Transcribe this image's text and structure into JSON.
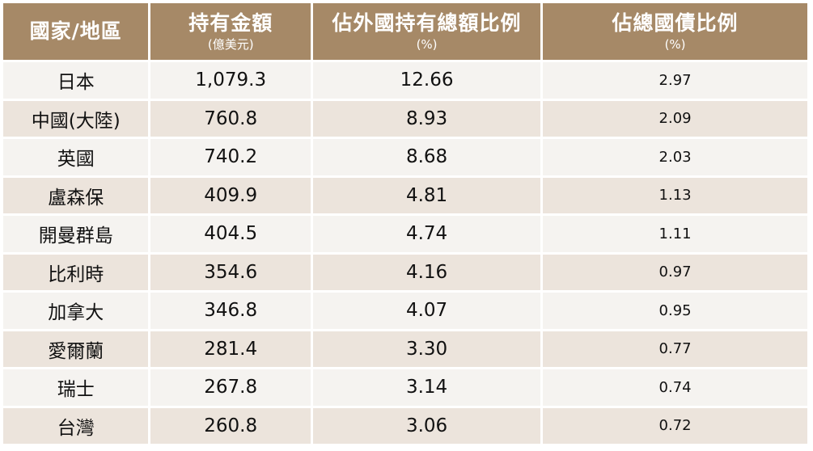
{
  "headers": {
    "country": "國家/地區",
    "holdings": "持有金額",
    "holdings_unit": "(億美元)",
    "share_foreign": "佔外國持有總額比例",
    "share_foreign_unit": "(%)",
    "share_total": "佔總國債比例",
    "share_total_unit": "(%)"
  },
  "rows": [
    {
      "country": "日本",
      "holdings": "1,079.3",
      "share_foreign": "12.66",
      "share_total": "2.97"
    },
    {
      "country": "中國(大陸)",
      "holdings": "760.8",
      "share_foreign": "8.93",
      "share_total": "2.09"
    },
    {
      "country": "英國",
      "holdings": "740.2",
      "share_foreign": "8.68",
      "share_total": "2.03"
    },
    {
      "country": "盧森保",
      "holdings": "409.9",
      "share_foreign": "4.81",
      "share_total": "1.13"
    },
    {
      "country": "開曼群島",
      "holdings": "404.5",
      "share_foreign": "4.74",
      "share_total": "1.11"
    },
    {
      "country": "比利時",
      "holdings": "354.6",
      "share_foreign": "4.16",
      "share_total": "0.97"
    },
    {
      "country": "加拿大",
      "holdings": "346.8",
      "share_foreign": "4.07",
      "share_total": "0.95"
    },
    {
      "country": "愛爾蘭",
      "holdings": "281.4",
      "share_foreign": "3.30",
      "share_total": "0.77"
    },
    {
      "country": "瑞士",
      "holdings": "267.8",
      "share_foreign": "3.14",
      "share_total": "0.74"
    },
    {
      "country": "台灣",
      "holdings": "260.8",
      "share_foreign": "3.06",
      "share_total": "0.72"
    }
  ],
  "colors": {
    "header_bg": "#a68967",
    "row_light": "#f5f3f0",
    "row_dark": "#ece4dc"
  }
}
